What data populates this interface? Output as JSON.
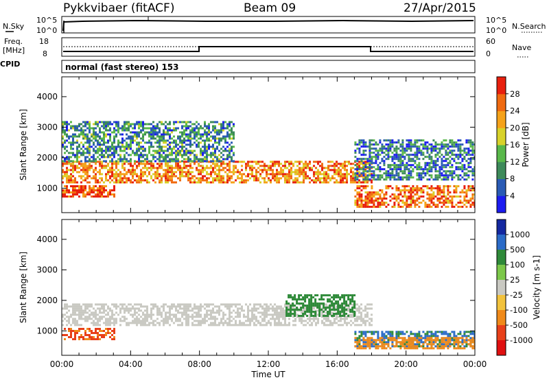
{
  "header": {
    "station": "Pykkvibaer (fitACF)",
    "beam": "Beam 09",
    "date": "27/Apr/2015"
  },
  "status_panels": {
    "nsky_label": "N.Sky",
    "nsearch_label": "N.Search",
    "noise_ticks": [
      "10^5",
      "10^0"
    ],
    "freq_label_1": "Freq.",
    "freq_label_2": "[MHz]",
    "freq_ticks": [
      "18",
      "8"
    ],
    "nave_label": "Nave",
    "nave_ticks": [
      "60",
      "0"
    ],
    "cpid_label": "CPID",
    "cpid_value": "normal (fast stereo) 153"
  },
  "colors": {
    "power": [
      "#1c1cf0",
      "#2a5bb5",
      "#3d8a5a",
      "#59b84a",
      "#d8d22a",
      "#f5a21a",
      "#f06a10",
      "#e8200e"
    ],
    "velocity": [
      "#1428a0",
      "#2b6bc8",
      "#2f8a3a",
      "#7cc84a",
      "#c9c9c2",
      "#f2c23c",
      "#f08a1a",
      "#e8401a",
      "#e01010"
    ]
  },
  "chart_data": [
    {
      "type": "heatmap",
      "name": "power",
      "ylabel": "Slant Range [km]",
      "yticks": [
        "1000",
        "2000",
        "3000",
        "4000"
      ],
      "ylim": [
        200,
        4650
      ],
      "xlim": [
        0,
        24
      ],
      "colorbar": {
        "label": "Power [dB]",
        "ticks": [
          "4",
          "8",
          "12",
          "16",
          "20",
          "24",
          "28"
        ],
        "range": [
          0,
          32
        ]
      },
      "echo_bands": [
        {
          "region": "main_ionospheric",
          "t_start": 0,
          "t_end": 18,
          "range_km": [
            1200,
            1900
          ],
          "power_db": 24
        },
        {
          "region": "near_range_early",
          "t_start": 0,
          "t_end": 3,
          "range_km": [
            700,
            1100
          ],
          "power_db": 28
        },
        {
          "region": "upper_band",
          "t_start": 0,
          "t_end": 10,
          "range_km": [
            1900,
            3200
          ],
          "power_db": 10
        },
        {
          "region": "post_18ut_lower",
          "t_start": 17,
          "t_end": 24,
          "range_km": [
            400,
            1100
          ],
          "power_db": 26
        },
        {
          "region": "post_18ut_upper",
          "t_start": 17,
          "t_end": 24,
          "range_km": [
            1300,
            2600
          ],
          "power_db": 8
        }
      ]
    },
    {
      "type": "heatmap",
      "name": "velocity",
      "ylabel": "Slant Range [km]",
      "yticks": [
        "1000",
        "2000",
        "3000",
        "4000"
      ],
      "ylim": [
        200,
        4650
      ],
      "xlim": [
        0,
        24
      ],
      "xlabel": "Time UT",
      "xticks": [
        "00:00",
        "04:00",
        "08:00",
        "12:00",
        "16:00",
        "20:00",
        "00:00"
      ],
      "colorbar": {
        "label": "Velocity [m s-1]",
        "ticks": [
          "1000",
          "500",
          "100",
          "25",
          "-25",
          "-100",
          "-500",
          "-1000"
        ]
      },
      "echo_bands": [
        {
          "region": "ground_scatter",
          "t_start": 0,
          "t_end": 18,
          "range_km": [
            1200,
            1900
          ],
          "velocity_ms": 0
        },
        {
          "region": "near_range_early",
          "t_start": 0,
          "t_end": 3,
          "range_km": [
            700,
            1100
          ],
          "velocity_ms": -600
        },
        {
          "region": "green_patches_16ut",
          "t_start": 13,
          "t_end": 17,
          "range_km": [
            1500,
            2200
          ],
          "velocity_ms": 300
        },
        {
          "region": "post_18ut_blue",
          "t_start": 17,
          "t_end": 24,
          "range_km": [
            500,
            1000
          ],
          "velocity_ms": 600
        },
        {
          "region": "post_18ut_orange",
          "t_start": 17,
          "t_end": 24,
          "range_km": [
            400,
            800
          ],
          "velocity_ms": -300
        }
      ]
    }
  ]
}
